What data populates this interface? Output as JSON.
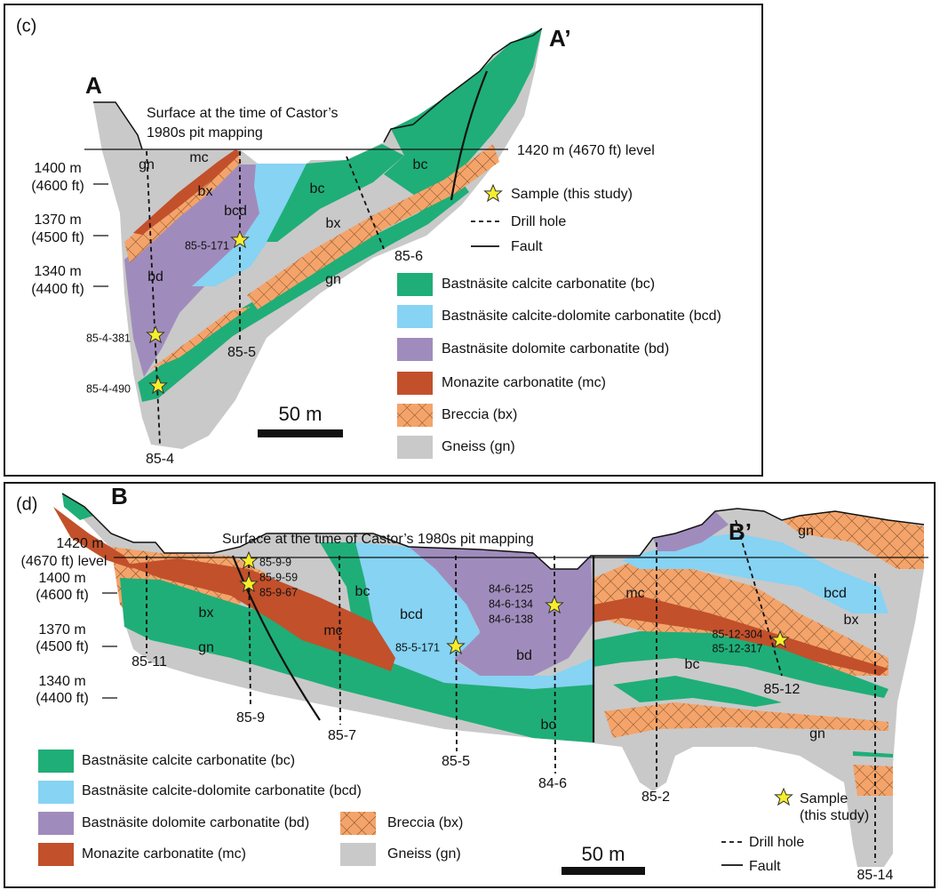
{
  "panel_c": {
    "label": "(c)",
    "end_left": "A",
    "end_right": "A’",
    "surface_note": [
      "Surface at the time of Castor’s",
      "1980s pit mapping"
    ],
    "level": "1420 m (4670 ft) level",
    "depths": [
      [
        "1400 m",
        "(4600 ft)"
      ],
      [
        "1370 m",
        "(4500 ft)"
      ],
      [
        "1340 m",
        "(4400 ft)"
      ]
    ],
    "unit_labels": [
      "gn",
      "mc",
      "bx",
      "bcd",
      "bc",
      "bc",
      "bx",
      "gn",
      "bd"
    ],
    "samples": [
      "85-5-171",
      "85-4-381",
      "85-4-490"
    ],
    "drill_holes": [
      "85-4",
      "85-5",
      "85-6"
    ],
    "legend": {
      "symbols": [
        "Sample (this study)",
        "Drill hole",
        "Fault"
      ],
      "units": [
        "Bastnäsite calcite carbonatite (bc)",
        "Bastnäsite calcite-dolomite carbonatite (bcd)",
        "Bastnäsite dolomite carbonatite (bd)",
        "Monazite carbonatite (mc)",
        "Breccia (bx)",
        "Gneiss (gn)"
      ]
    },
    "scale": "50 m"
  },
  "panel_d": {
    "label": "(d)",
    "end_left": "B",
    "end_right": "B’",
    "surface_note": "Surface at the time of Castor’s 1980s pit mapping",
    "level": [
      "1420 m",
      "(4670 ft) level"
    ],
    "depths": [
      [
        "1400 m",
        "(4600 ft)"
      ],
      [
        "1370 m",
        "(4500 ft)"
      ],
      [
        "1340 m",
        "(4400 ft)"
      ]
    ],
    "unit_labels": [
      "bx",
      "mc",
      "bc",
      "gn",
      "bcd",
      "bd",
      "bc",
      "bc",
      "mc",
      "bcd",
      "bx",
      "gn",
      "gn"
    ],
    "samples": [
      "85-9-9",
      "85-9-59",
      "85-9-67",
      "84-6-125",
      "84-6-134",
      "84-6-138",
      "85-5-171",
      "85-12-304",
      "85-12-317"
    ],
    "drill_holes": [
      "85-11",
      "85-9",
      "85-7",
      "85-5",
      "84-6",
      "85-2",
      "85-12",
      "85-14"
    ],
    "legend": {
      "units": [
        "Bastnäsite calcite carbonatite (bc)",
        "Bastnäsite calcite-dolomite carbonatite (bcd)",
        "Bastnäsite dolomite carbonatite (bd)",
        "Monazite carbonatite (mc)",
        "Breccia (bx)",
        "Gneiss (gn)"
      ],
      "symbols": [
        "Sample",
        "(this study)",
        "Drill hole",
        "Fault"
      ]
    },
    "scale": "50 m"
  }
}
